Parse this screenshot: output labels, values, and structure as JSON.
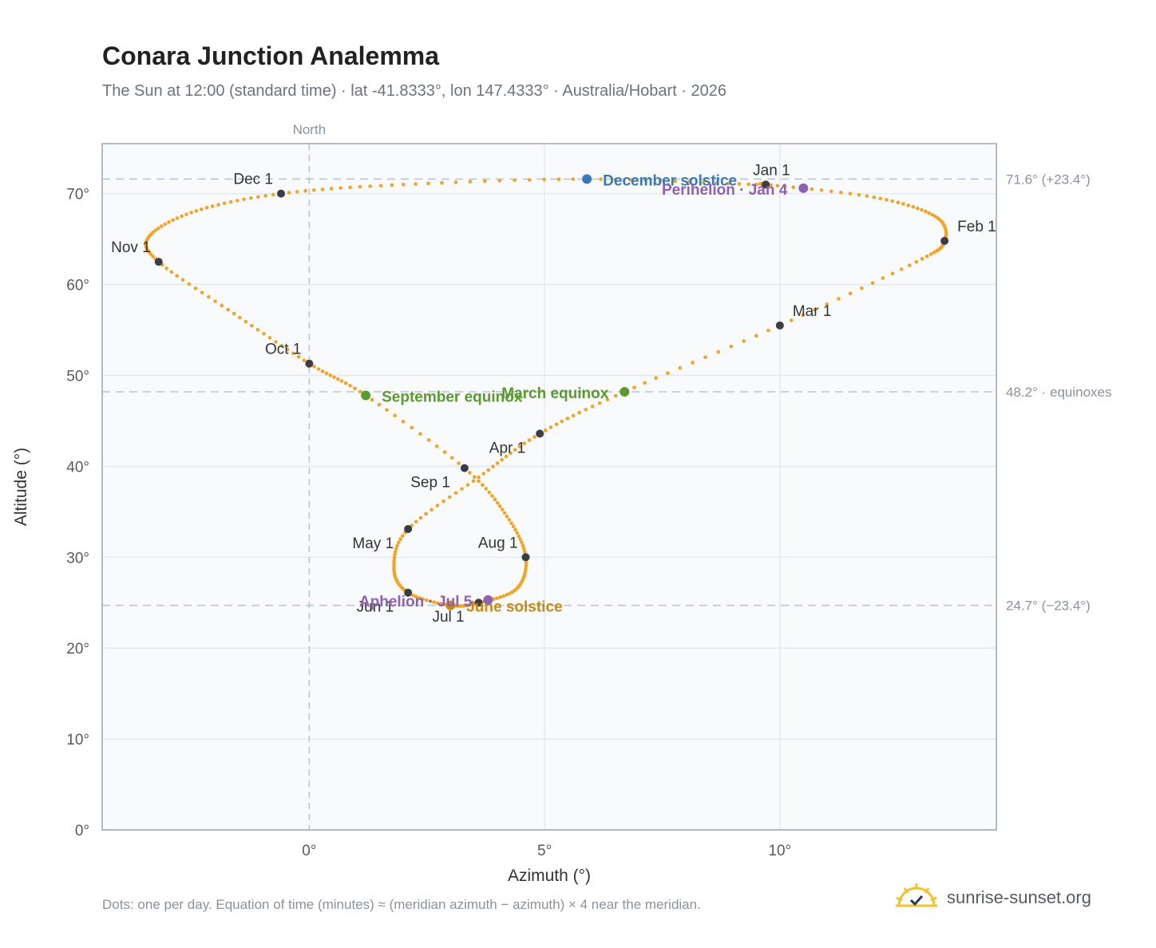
{
  "title": "Conara Junction Analemma",
  "subtitle": "The Sun at 12:00 (standard time) · lat -41.8333°, lon 147.4333° · Australia/Hobart · 2026",
  "footnote": "Dots: one per day. Equation of time (minutes) ≈ (meridian azimuth − azimuth) × 4 near the meridian.",
  "brand": {
    "text": "sunrise-sunset.org",
    "icon": "sun-logo-icon"
  },
  "colors": {
    "curve": "#f2a428",
    "month_marker": "#3a3d44",
    "equinox": "#5a9a2f",
    "december_solstice": "#3a78b8",
    "june_solstice": "#c98a12",
    "perihelion_aphelion": "#8e62b0",
    "plot_background": "#f8fafc",
    "grid": "#e4e9ef",
    "reference_line": "#b7c4d0"
  },
  "chart_data": {
    "type": "scatter",
    "xlabel": "Azimuth (°)",
    "ylabel": "Altitude (°)",
    "xlim": [
      -4.4,
      14.6
    ],
    "ylim": [
      0,
      75.5
    ],
    "x_ticks": [
      {
        "value": 0,
        "label": "0°"
      },
      {
        "value": 5,
        "label": "5°"
      },
      {
        "value": 10,
        "label": "10°"
      }
    ],
    "y_ticks": [
      {
        "value": 0,
        "label": "0°"
      },
      {
        "value": 10,
        "label": "10°"
      },
      {
        "value": 20,
        "label": "20°"
      },
      {
        "value": 30,
        "label": "30°"
      },
      {
        "value": 40,
        "label": "40°"
      },
      {
        "value": 50,
        "label": "50°"
      },
      {
        "value": 60,
        "label": "60°"
      },
      {
        "value": 70,
        "label": "70°"
      }
    ],
    "grid": true,
    "meridian": {
      "x": 0,
      "label": "North"
    },
    "reference_lines": [
      {
        "y": 71.6,
        "label": "71.6° (+23.4°)"
      },
      {
        "y": 48.2,
        "label": "48.2° · equinoxes"
      },
      {
        "y": 24.7,
        "label": "24.7° (−23.4°)"
      }
    ],
    "series": [
      {
        "name": "Sun position",
        "points_per": "day",
        "path": [
          {
            "date": "Jan 1",
            "az": 9.7,
            "alt": 71.0
          },
          {
            "date": "Jan 16",
            "az": 12.0,
            "alt": 69.6
          },
          {
            "date": "Jan 25",
            "az": 13.3,
            "alt": 67.5
          },
          {
            "date": "Feb 1",
            "az": 13.5,
            "alt": 64.8
          },
          {
            "date": "Feb 10",
            "az": 12.9,
            "alt": 62.5
          },
          {
            "date": "Mar 1",
            "az": 10.0,
            "alt": 55.5
          },
          {
            "date": "Mar 20",
            "az": 6.7,
            "alt": 48.2
          },
          {
            "date": "Apr 1",
            "az": 4.9,
            "alt": 43.6
          },
          {
            "date": "Apr 15",
            "az": 3.6,
            "alt": 38.8
          },
          {
            "date": "May 1",
            "az": 2.1,
            "alt": 33.1
          },
          {
            "date": "May 15",
            "az": 1.8,
            "alt": 28.8
          },
          {
            "date": "Jun 1",
            "az": 2.1,
            "alt": 26.1
          },
          {
            "date": "Jun 21",
            "az": 3.0,
            "alt": 24.7
          },
          {
            "date": "Jul 1",
            "az": 3.6,
            "alt": 25.0
          },
          {
            "date": "Jul 15",
            "az": 4.4,
            "alt": 26.5
          },
          {
            "date": "Aug 1",
            "az": 4.6,
            "alt": 30.0
          },
          {
            "date": "Aug 15",
            "az": 4.2,
            "alt": 34.5
          },
          {
            "date": "Sep 1",
            "az": 3.3,
            "alt": 39.8
          },
          {
            "date": "Sep 23",
            "az": 1.2,
            "alt": 47.8
          },
          {
            "date": "Oct 1",
            "az": 0.0,
            "alt": 51.3
          },
          {
            "date": "Oct 15",
            "az": -1.6,
            "alt": 56.8
          },
          {
            "date": "Nov 1",
            "az": -3.2,
            "alt": 62.5
          },
          {
            "date": "Nov 10",
            "az": -3.4,
            "alt": 65.3
          },
          {
            "date": "Nov 20",
            "az": -2.4,
            "alt": 68.1
          },
          {
            "date": "Dec 1",
            "az": -0.6,
            "alt": 70.0
          },
          {
            "date": "Dec 10",
            "az": 2.0,
            "alt": 71.0
          },
          {
            "date": "Dec 21",
            "az": 5.9,
            "alt": 71.6
          },
          {
            "date": "Dec 31",
            "az": 9.5,
            "alt": 71.0
          }
        ]
      }
    ],
    "month_markers": [
      {
        "label": "Jan 1",
        "az": 9.7,
        "alt": 71.0,
        "anchor": "above"
      },
      {
        "label": "Feb 1",
        "az": 13.5,
        "alt": 64.8,
        "anchor": "right-above"
      },
      {
        "label": "Mar 1",
        "az": 10.0,
        "alt": 55.5,
        "anchor": "right-above"
      },
      {
        "label": "Apr 1",
        "az": 4.9,
        "alt": 43.6,
        "anchor": "left-below"
      },
      {
        "label": "May 1",
        "az": 2.1,
        "alt": 33.1,
        "anchor": "left-below"
      },
      {
        "label": "Jun 1",
        "az": 2.1,
        "alt": 26.1,
        "anchor": "left-below"
      },
      {
        "label": "Jul 1",
        "az": 3.6,
        "alt": 25.0,
        "anchor": "left-below"
      },
      {
        "label": "Aug 1",
        "az": 4.6,
        "alt": 30.0,
        "anchor": "left-above"
      },
      {
        "label": "Sep 1",
        "az": 3.3,
        "alt": 39.8,
        "anchor": "left-below"
      },
      {
        "label": "Oct 1",
        "az": 0.0,
        "alt": 51.3,
        "anchor": "left-above"
      },
      {
        "label": "Nov 1",
        "az": -3.2,
        "alt": 62.5,
        "anchor": "left-above"
      },
      {
        "label": "Dec 1",
        "az": -0.6,
        "alt": 70.0,
        "anchor": "left-above"
      }
    ],
    "events": [
      {
        "label": "March equinox",
        "az": 6.7,
        "alt": 48.2,
        "color_key": "equinox",
        "anchor": "left"
      },
      {
        "label": "September equinox",
        "az": 1.2,
        "alt": 47.8,
        "color_key": "equinox",
        "anchor": "right"
      },
      {
        "label": "December solstice",
        "az": 5.9,
        "alt": 71.6,
        "color_key": "december_solstice",
        "anchor": "right"
      },
      {
        "label": "June solstice",
        "az": 3.0,
        "alt": 24.7,
        "color_key": "june_solstice",
        "anchor": "right"
      },
      {
        "label": "Perihelion · Jan 4",
        "az": 10.5,
        "alt": 70.6,
        "color_key": "perihelion_aphelion",
        "anchor": "left"
      },
      {
        "label": "Aphelion · Jul 5",
        "az": 3.8,
        "alt": 25.3,
        "color_key": "perihelion_aphelion",
        "anchor": "left"
      }
    ]
  }
}
